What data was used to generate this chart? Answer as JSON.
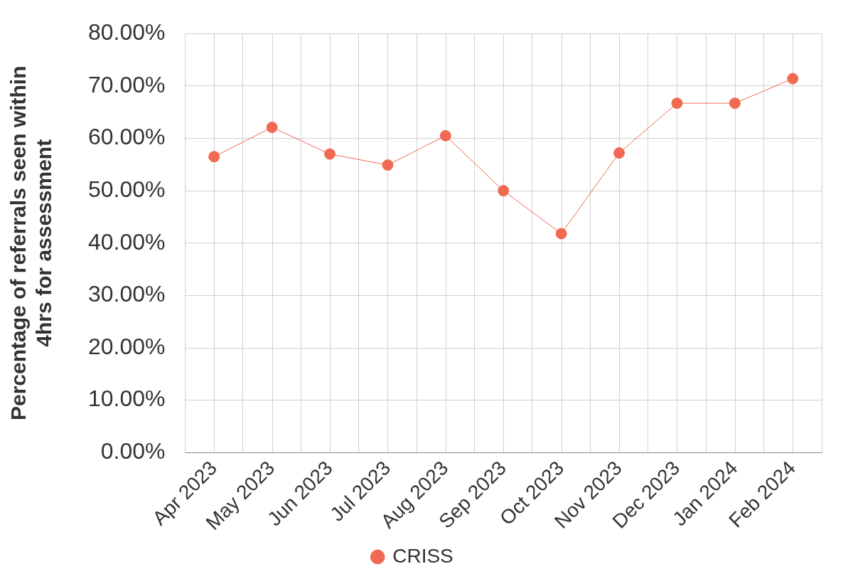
{
  "chart_data": {
    "type": "line",
    "ylabel": "Percentage of referrals seen within\n4hrs for assessment",
    "categories": [
      "Apr 2023",
      "May 2023",
      "Jun 2023",
      "Jul 2023",
      "Aug 2023",
      "Sep 2023",
      "Oct 2023",
      "Nov 2023",
      "Dec 2023",
      "Jan 2024",
      "Feb 2024"
    ],
    "series": [
      {
        "name": "CRISS",
        "color": "#f06a52",
        "values": [
          56.5,
          62.1,
          57.0,
          54.9,
          60.5,
          50.0,
          41.8,
          57.2,
          66.7,
          66.7,
          71.4
        ]
      }
    ],
    "ylim": [
      0,
      80
    ],
    "yticks": [
      {
        "value": 0,
        "label": "0.00%"
      },
      {
        "value": 10,
        "label": "10.00%"
      },
      {
        "value": 20,
        "label": "20.00%"
      },
      {
        "value": 30,
        "label": "30.00%"
      },
      {
        "value": 40,
        "label": "40.00%"
      },
      {
        "value": 50,
        "label": "50.00%"
      },
      {
        "value": 60,
        "label": "60.00%"
      },
      {
        "value": 70,
        "label": "70.00%"
      },
      {
        "value": 80,
        "label": "80.00%"
      }
    ],
    "grid": true,
    "legend": "bottom",
    "marker": "circle",
    "line_style": "solid"
  }
}
